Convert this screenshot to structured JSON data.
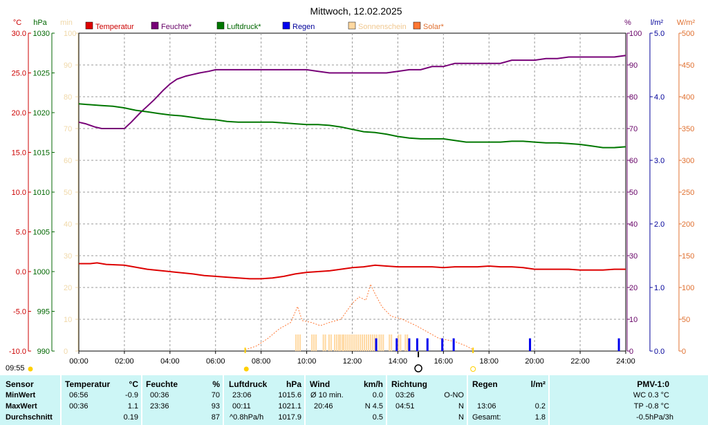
{
  "title": "Mittwoch, 12.02.2025",
  "current_time": "09:55",
  "axes": {
    "temp": {
      "unit": "°C",
      "min": -10,
      "max": 30,
      "ticks": [
        "30.0",
        "25.0",
        "20.0",
        "15.0",
        "10.0",
        "5.0",
        "0.0",
        "-5.0",
        "-10.0"
      ],
      "color": "#cc0000"
    },
    "pressure": {
      "unit": "hPa",
      "min": 990,
      "max": 1030,
      "ticks": [
        "1030",
        "1025",
        "1020",
        "1015",
        "1010",
        "1005",
        "1000",
        "995",
        "990"
      ],
      "color": "#006600"
    },
    "minutes": {
      "unit": "min",
      "min": 0,
      "max": 100,
      "ticks": [
        "100",
        "90",
        "80",
        "70",
        "60",
        "50",
        "40",
        "30",
        "20",
        "10",
        "0"
      ],
      "color": "#f0d8a8"
    },
    "humidity": {
      "unit": "%",
      "min": 0,
      "max": 100,
      "ticks": [
        "100",
        "90",
        "80",
        "70",
        "60",
        "50",
        "40",
        "30",
        "20",
        "10",
        "0"
      ],
      "color": "#660066"
    },
    "rain": {
      "unit": "l/m²",
      "min": 0,
      "max": 5,
      "ticks": [
        "5.0",
        "4.0",
        "3.0",
        "2.0",
        "1.0",
        "0.0"
      ],
      "color": "#000099"
    },
    "solar": {
      "unit": "W/m²",
      "min": 0,
      "max": 500,
      "ticks": [
        "500",
        "450",
        "400",
        "350",
        "300",
        "250",
        "200",
        "150",
        "100",
        "50",
        "0"
      ],
      "color": "#e07030"
    }
  },
  "x_ticks": [
    "00:00",
    "02:00",
    "04:00",
    "06:00",
    "08:00",
    "10:00",
    "12:00",
    "14:00",
    "16:00",
    "18:00",
    "20:00",
    "22:00",
    "24:00"
  ],
  "legend": [
    {
      "label": "Temperatur",
      "color": "#dd0000"
    },
    {
      "label": "Feuchte*",
      "color": "#770077"
    },
    {
      "label": "Luftdruck*",
      "color": "#007700"
    },
    {
      "label": "Regen",
      "color": "#0000ee"
    },
    {
      "label": "Sonnenschein",
      "color": "#ffd8a0"
    },
    {
      "label": "Solar*",
      "color": "#ff7733"
    }
  ],
  "chart_data": {
    "type": "line",
    "x_unit": "hours",
    "x_range": [
      0,
      24
    ],
    "series": [
      {
        "name": "Temperatur",
        "axis": "temp",
        "color": "#dd0000",
        "x": [
          0,
          0.5,
          0.8,
          1.2,
          2,
          3,
          4,
          5,
          5.5,
          6,
          6.5,
          7,
          7.5,
          8,
          8.5,
          9,
          9.5,
          10,
          10.5,
          11,
          11.5,
          12,
          12.5,
          13,
          13.5,
          14,
          14.5,
          15,
          15.5,
          16,
          16.5,
          17,
          17.5,
          18,
          18.5,
          19,
          19.5,
          20,
          20.5,
          21,
          21.5,
          22,
          22.5,
          23,
          23.5,
          24
        ],
        "y": [
          1.0,
          1.0,
          1.1,
          0.9,
          0.8,
          0.3,
          0.0,
          -0.3,
          -0.5,
          -0.6,
          -0.7,
          -0.8,
          -0.9,
          -0.9,
          -0.8,
          -0.6,
          -0.3,
          -0.1,
          0.0,
          0.1,
          0.3,
          0.5,
          0.6,
          0.8,
          0.7,
          0.6,
          0.6,
          0.6,
          0.6,
          0.5,
          0.6,
          0.6,
          0.6,
          0.7,
          0.6,
          0.6,
          0.5,
          0.3,
          0.3,
          0.3,
          0.3,
          0.2,
          0.2,
          0.2,
          0.3,
          0.3
        ]
      },
      {
        "name": "Feuchte*",
        "axis": "humidity",
        "color": "#770077",
        "x": [
          0,
          0.3,
          0.7,
          1,
          1.5,
          2,
          2.3,
          2.7,
          3,
          3.3,
          3.7,
          4,
          4.3,
          4.7,
          5,
          5.3,
          5.7,
          6,
          6.5,
          7,
          8,
          9,
          10,
          10.5,
          11,
          11.5,
          12,
          12.5,
          13,
          13.5,
          14,
          14.5,
          15,
          15.5,
          16,
          16.5,
          17,
          17.5,
          18,
          18.5,
          19,
          19.5,
          20,
          20.5,
          21,
          21.5,
          22,
          22.5,
          23,
          23.5,
          24
        ],
        "y": [
          72,
          71.5,
          70.5,
          70,
          70,
          70,
          72,
          75,
          77,
          79,
          82,
          84,
          85.5,
          86.5,
          87,
          87.5,
          88,
          88.5,
          88.5,
          88.5,
          88.5,
          88.5,
          88.5,
          88,
          87.5,
          87.5,
          87.5,
          87.5,
          87.5,
          87.5,
          88,
          88.5,
          88.5,
          89.5,
          89.5,
          90.5,
          90.5,
          90.5,
          90.5,
          90.5,
          91.5,
          91.5,
          91.5,
          92,
          92,
          92.5,
          92.5,
          92.5,
          92.5,
          92.5,
          93
        ]
      },
      {
        "name": "Luftdruck*",
        "axis": "pressure",
        "color": "#007700",
        "x": [
          0,
          0.5,
          1,
          1.5,
          2,
          2.5,
          3,
          3.5,
          4,
          4.5,
          5,
          5.5,
          6,
          6.5,
          7,
          7.5,
          8,
          8.5,
          9,
          9.5,
          10,
          10.5,
          11,
          11.5,
          12,
          12.5,
          13,
          13.5,
          14,
          14.5,
          15,
          15.5,
          16,
          16.5,
          17,
          17.5,
          18,
          18.5,
          19,
          19.5,
          20,
          20.5,
          21,
          21.5,
          22,
          22.5,
          23,
          23.5,
          24
        ],
        "y": [
          1021.1,
          1021.0,
          1020.9,
          1020.8,
          1020.6,
          1020.3,
          1020.1,
          1019.9,
          1019.7,
          1019.6,
          1019.4,
          1019.2,
          1019.1,
          1018.9,
          1018.8,
          1018.8,
          1018.8,
          1018.8,
          1018.7,
          1018.6,
          1018.5,
          1018.5,
          1018.4,
          1018.2,
          1017.9,
          1017.6,
          1017.5,
          1017.3,
          1017.0,
          1016.8,
          1016.7,
          1016.7,
          1016.7,
          1016.5,
          1016.3,
          1016.3,
          1016.3,
          1016.3,
          1016.4,
          1016.4,
          1016.3,
          1016.2,
          1016.2,
          1016.1,
          1016.0,
          1015.8,
          1015.6,
          1015.6,
          1015.7
        ]
      },
      {
        "name": "Solar*",
        "axis": "solar",
        "color": "#ff7733",
        "dashed": true,
        "x": [
          7.3,
          7.8,
          8.3,
          8.8,
          9.3,
          9.6,
          9.8,
          10.2,
          10.6,
          11,
          11.5,
          12,
          12.3,
          12.6,
          12.8,
          13,
          13.3,
          13.7,
          14.2,
          14.8,
          15.3,
          15.8,
          16.5,
          17,
          17.3
        ],
        "y": [
          2,
          8,
          20,
          35,
          45,
          70,
          48,
          45,
          40,
          45,
          50,
          75,
          85,
          80,
          105,
          90,
          70,
          55,
          50,
          40,
          30,
          20,
          15,
          8,
          2
        ]
      }
    ],
    "rain": {
      "name": "Regen",
      "color": "#0000ee",
      "events": [
        {
          "x": 13.05,
          "y": 0.2
        },
        {
          "x": 13.95,
          "y": 0.2
        },
        {
          "x": 14.5,
          "y": 0.2
        },
        {
          "x": 14.85,
          "y": 0.2
        },
        {
          "x": 15.3,
          "y": 0.2
        },
        {
          "x": 15.95,
          "y": 0.2
        },
        {
          "x": 16.45,
          "y": 0.2
        },
        {
          "x": 19.8,
          "y": 0.2
        },
        {
          "x": 23.7,
          "y": 0.2
        }
      ]
    },
    "sunshine": {
      "name": "Sonnenschein",
      "color": "#ffd8a0",
      "intervals": [
        [
          9.5,
          9.7
        ],
        [
          10.2,
          10.4
        ],
        [
          10.7,
          10.85
        ],
        [
          10.95,
          11.1
        ],
        [
          11.2,
          11.4
        ],
        [
          11.45,
          11.55
        ],
        [
          11.6,
          12.9
        ],
        [
          12.95,
          13.05
        ],
        [
          13.15,
          13.35
        ],
        [
          13.6,
          13.7
        ],
        [
          14.0,
          14.1
        ],
        [
          14.3,
          14.4
        ]
      ],
      "marks": [
        7.3,
        17.3
      ]
    }
  },
  "stats": {
    "sensor": {
      "header": "Sensor",
      "rows": [
        "MinWert",
        "MaxWert",
        "Durchschnitt"
      ]
    },
    "temperature": {
      "header": "Temperatur",
      "unit": "°C",
      "rows": [
        {
          "t": "06:56",
          "v": "-0.9"
        },
        {
          "t": "00:36",
          "v": "1.1"
        },
        {
          "t": "",
          "v": "0.19"
        }
      ]
    },
    "humidity": {
      "header": "Feuchte",
      "unit": "%",
      "rows": [
        {
          "t": "00:36",
          "v": "70"
        },
        {
          "t": "23:36",
          "v": "93"
        },
        {
          "t": "",
          "v": "87"
        }
      ]
    },
    "pressure": {
      "header": "Luftdruck",
      "unit": "hPa",
      "rows": [
        {
          "t": "23:06",
          "v": "1015.6"
        },
        {
          "t": "00:11",
          "v": "1021.1"
        },
        {
          "t": "^0.8hPa/h",
          "v": "1017.9"
        }
      ]
    },
    "wind": {
      "header": "Wind",
      "unit": "km/h",
      "rows": [
        {
          "t": "Ø 10 min.",
          "v": "0.0"
        },
        {
          "t": "20:46",
          "v": "N 4.5"
        },
        {
          "t": "",
          "v": "0.5"
        }
      ]
    },
    "direction": {
      "header": "Richtung",
      "unit": "",
      "rows": [
        {
          "t": "03:26",
          "v": "O-NO"
        },
        {
          "t": "04:51",
          "v": "N"
        },
        {
          "t": "",
          "v": "N"
        }
      ]
    },
    "rain": {
      "header": "Regen",
      "unit": "l/m²",
      "rows": [
        {
          "t": "",
          "v": ""
        },
        {
          "t": "13:06",
          "v": "0.2"
        },
        {
          "t": "Gesamt:",
          "v": "1.8"
        }
      ]
    },
    "pmv": {
      "header": "PMV-1:0",
      "rows": [
        "WC 0.3 °C",
        "TP -0.8 °C",
        "-0.5hPa/3h"
      ]
    }
  }
}
